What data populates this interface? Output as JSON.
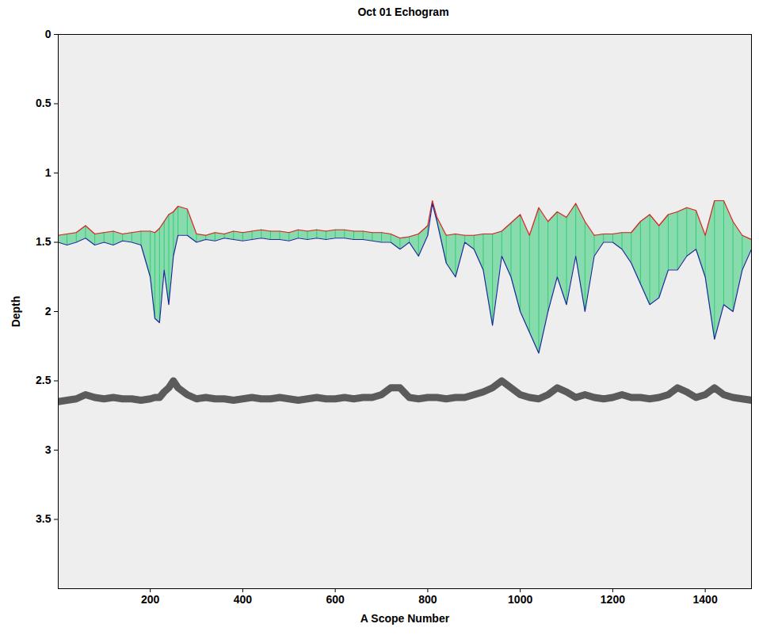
{
  "chart_data": {
    "type": "area",
    "title": "Oct 01 Echogram",
    "x_label": "A Scope Number",
    "y_label": "Depth",
    "color": "#33cc77",
    "x": [
      1,
      20,
      40,
      60,
      80,
      100,
      120,
      140,
      160,
      180,
      200,
      210,
      220,
      230,
      240,
      250,
      260,
      280,
      300,
      320,
      340,
      360,
      380,
      400,
      420,
      440,
      460,
      480,
      500,
      520,
      540,
      560,
      580,
      600,
      620,
      640,
      660,
      680,
      700,
      720,
      740,
      760,
      780,
      800,
      810,
      820,
      840,
      860,
      880,
      900,
      920,
      940,
      960,
      980,
      1000,
      1020,
      1040,
      1060,
      1080,
      1100,
      1120,
      1140,
      1160,
      1180,
      1200,
      1220,
      1240,
      1260,
      1280,
      1300,
      1320,
      1340,
      1360,
      1380,
      1400,
      1420,
      1440,
      1460,
      1480,
      1500
    ],
    "series": [
      {
        "type": "line",
        "color": "#e02020",
        "values": [
          1.45,
          1.44,
          1.43,
          1.38,
          1.44,
          1.43,
          1.42,
          1.44,
          1.43,
          1.42,
          1.42,
          1.43,
          1.4,
          1.35,
          1.3,
          1.28,
          1.24,
          1.26,
          1.44,
          1.45,
          1.43,
          1.44,
          1.42,
          1.43,
          1.42,
          1.41,
          1.42,
          1.42,
          1.43,
          1.41,
          1.42,
          1.41,
          1.42,
          1.41,
          1.41,
          1.42,
          1.42,
          1.43,
          1.43,
          1.44,
          1.47,
          1.46,
          1.44,
          1.38,
          1.2,
          1.32,
          1.45,
          1.44,
          1.45,
          1.45,
          1.44,
          1.44,
          1.42,
          1.36,
          1.3,
          1.45,
          1.25,
          1.35,
          1.28,
          1.32,
          1.22,
          1.35,
          1.45,
          1.44,
          1.44,
          1.43,
          1.43,
          1.35,
          1.3,
          1.38,
          1.3,
          1.28,
          1.25,
          1.27,
          1.45,
          1.2,
          1.2,
          1.35,
          1.45,
          1.48
        ]
      },
      {
        "type": "line",
        "color": "#1a2a9a",
        "values": [
          1.5,
          1.52,
          1.5,
          1.47,
          1.52,
          1.5,
          1.52,
          1.49,
          1.5,
          1.52,
          1.75,
          2.05,
          2.08,
          1.7,
          1.95,
          1.6,
          1.45,
          1.45,
          1.5,
          1.48,
          1.49,
          1.47,
          1.48,
          1.49,
          1.48,
          1.47,
          1.48,
          1.48,
          1.49,
          1.47,
          1.48,
          1.47,
          1.48,
          1.47,
          1.47,
          1.48,
          1.48,
          1.49,
          1.5,
          1.5,
          1.55,
          1.5,
          1.6,
          1.45,
          1.22,
          1.35,
          1.65,
          1.75,
          1.5,
          1.55,
          1.7,
          2.1,
          1.6,
          1.75,
          2.0,
          2.15,
          2.3,
          2.0,
          1.75,
          1.95,
          1.6,
          2.0,
          1.6,
          1.5,
          1.5,
          1.55,
          1.65,
          1.8,
          1.95,
          1.9,
          1.7,
          1.7,
          1.6,
          1.55,
          1.75,
          2.2,
          1.95,
          2.0,
          1.7,
          1.55
        ]
      },
      {
        "type": "line",
        "color": "#2a2a2a",
        "values": [
          2.65,
          2.64,
          2.63,
          2.6,
          2.62,
          2.63,
          2.62,
          2.63,
          2.63,
          2.64,
          2.63,
          2.62,
          2.62,
          2.58,
          2.55,
          2.5,
          2.55,
          2.6,
          2.63,
          2.62,
          2.63,
          2.63,
          2.64,
          2.63,
          2.62,
          2.63,
          2.63,
          2.62,
          2.63,
          2.64,
          2.63,
          2.62,
          2.63,
          2.63,
          2.62,
          2.63,
          2.62,
          2.62,
          2.6,
          2.55,
          2.55,
          2.62,
          2.63,
          2.62,
          2.62,
          2.62,
          2.63,
          2.62,
          2.62,
          2.6,
          2.58,
          2.55,
          2.5,
          2.55,
          2.6,
          2.62,
          2.63,
          2.6,
          2.55,
          2.58,
          2.62,
          2.6,
          2.62,
          2.63,
          2.62,
          2.6,
          2.62,
          2.62,
          2.63,
          2.62,
          2.6,
          2.55,
          2.58,
          2.62,
          2.6,
          2.55,
          2.6,
          2.62,
          2.63,
          2.64
        ]
      }
    ],
    "xlim": [
      1,
      1500
    ],
    "xticks": [
      200,
      400,
      600,
      800,
      1000,
      1200,
      1400
    ],
    "ylim": [
      4,
      0
    ],
    "yticks": [
      0,
      0.5,
      1,
      1.5,
      2,
      2.5,
      3,
      3.5
    ],
    "grid": false
  }
}
